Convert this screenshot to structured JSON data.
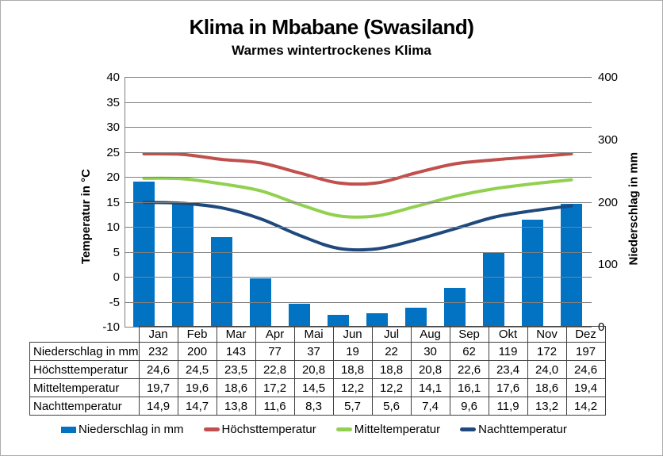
{
  "header": {
    "title": "Klima in Mbabane (Swasiland)",
    "subtitle": "Warmes wintertrockenes Klima"
  },
  "chart_data": {
    "type": "combo-bar-line",
    "categories": [
      "Jan",
      "Feb",
      "Mar",
      "Apr",
      "Mai",
      "Jun",
      "Jul",
      "Aug",
      "Sep",
      "Okt",
      "Nov",
      "Dez"
    ],
    "bar_series": {
      "name": "Niederschlag in mm",
      "axis": "right",
      "color": "#0272C3",
      "decimals": 0,
      "values": [
        232,
        200,
        143,
        77,
        37,
        19,
        22,
        30,
        62,
        119,
        172,
        197
      ]
    },
    "line_series": [
      {
        "name": "Höchsttemperatur",
        "axis": "left",
        "color": "#C0504D",
        "decimals": 1,
        "values": [
          24.6,
          24.5,
          23.5,
          22.8,
          20.8,
          18.8,
          18.8,
          20.8,
          22.6,
          23.4,
          24.0,
          24.6
        ]
      },
      {
        "name": "Mitteltemperatur",
        "axis": "left",
        "color": "#92D050",
        "decimals": 1,
        "values": [
          19.7,
          19.6,
          18.6,
          17.2,
          14.5,
          12.2,
          12.2,
          14.1,
          16.1,
          17.6,
          18.6,
          19.4
        ]
      },
      {
        "name": "Nachttemperatur",
        "axis": "left",
        "color": "#1F497D",
        "decimals": 1,
        "values": [
          14.9,
          14.7,
          13.8,
          11.6,
          8.3,
          5.7,
          5.6,
          7.4,
          9.6,
          11.9,
          13.2,
          14.2
        ]
      }
    ],
    "left_axis": {
      "title": "Temperatur in °C",
      "min": -10,
      "max": 40,
      "step": 5
    },
    "right_axis": {
      "title": "Niederschlag in mm",
      "min": 0,
      "max": 400,
      "step": 100
    },
    "grid": true,
    "legend_position": "bottom",
    "styles": {
      "grid_color": "#808080",
      "axis_line_color": "#808080",
      "table_border_color": "#404040",
      "text_color": "#000000",
      "page_border_color": "#ABABAB",
      "decimal_separator": ","
    }
  }
}
